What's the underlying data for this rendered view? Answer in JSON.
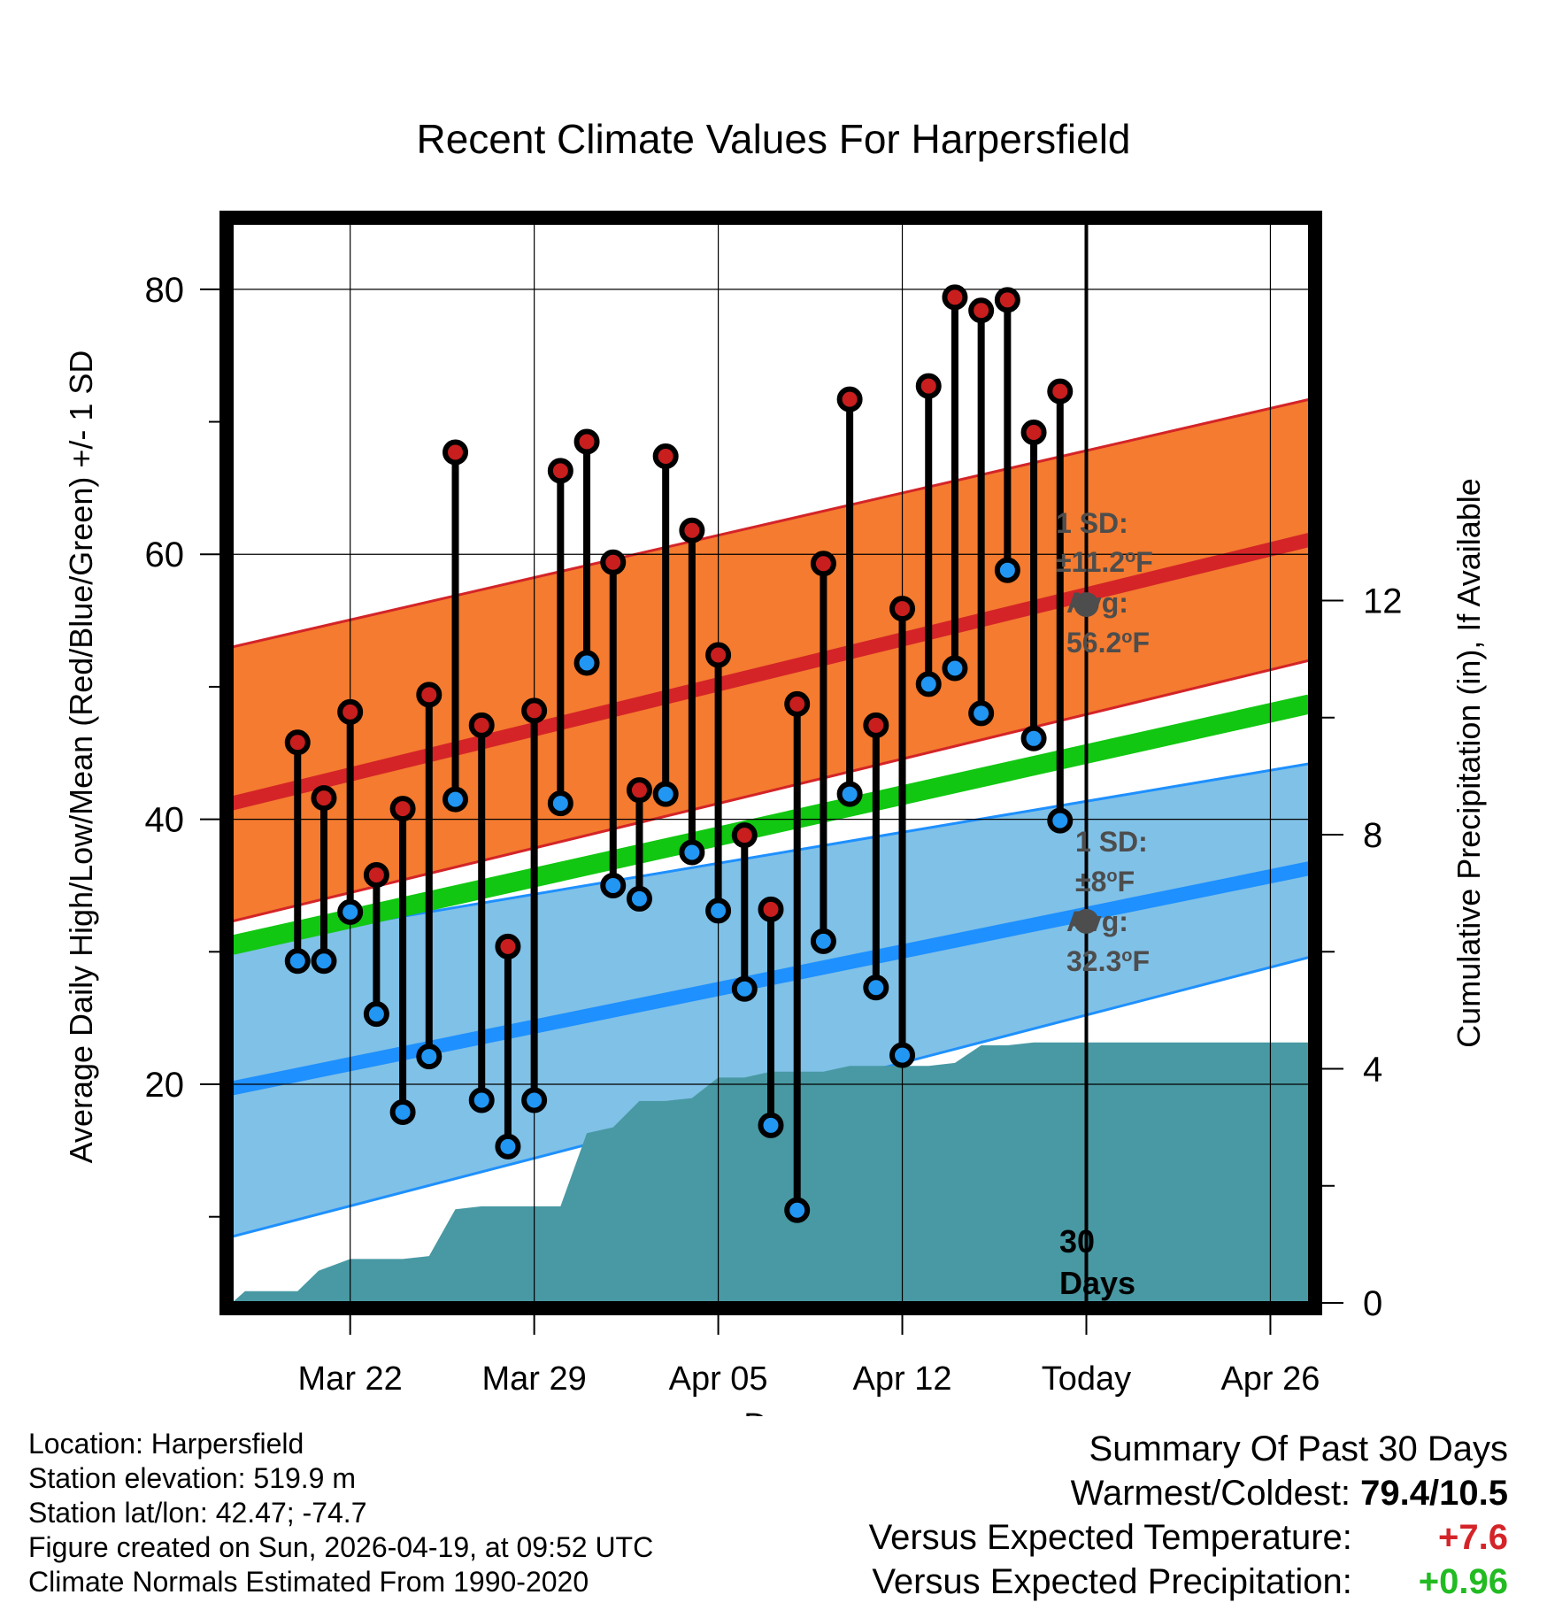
{
  "chart_data": {
    "type": "bar",
    "title": "Recent Climate Values For Harpersfield",
    "xlabel": "Day",
    "ylabel": "Average Daily High/Low/Mean (Red/Blue/Green) +/- 1 SD",
    "y2label": "Cumulative Precipitation (in), If Available",
    "ylim": [
      3.5,
      85
    ],
    "y2lim": [
      0,
      18.45
    ],
    "xlim": [
      -4.5,
      36.5
    ],
    "yticks": [
      "20",
      "40",
      "60",
      "80"
    ],
    "y2ticks": [
      "0",
      "4",
      "8",
      "12"
    ],
    "xticks": [
      {
        "day": 0,
        "label": "Mar 22"
      },
      {
        "day": 7,
        "label": "Mar 29"
      },
      {
        "day": 14,
        "label": "Apr 05"
      },
      {
        "day": 21,
        "label": "Apr 12"
      },
      {
        "day": 28,
        "label": "Today"
      },
      {
        "day": 35,
        "label": "Apr 26"
      }
    ],
    "days": [
      -2,
      -1,
      0,
      1,
      2,
      3,
      4,
      5,
      6,
      7,
      8,
      9,
      10,
      11,
      12,
      13,
      14,
      15,
      16,
      17,
      18,
      19,
      20,
      21,
      22,
      23,
      24,
      25,
      26,
      27
    ],
    "highs": [
      45.8,
      41.6,
      48.1,
      35.8,
      40.8,
      49.4,
      67.7,
      47.1,
      30.4,
      48.2,
      66.3,
      68.5,
      59.4,
      42.2,
      67.4,
      61.8,
      52.4,
      38.8,
      33.2,
      48.7,
      59.3,
      71.7,
      47.1,
      55.9,
      72.7,
      79.4,
      78.4,
      79.2,
      69.2,
      72.3
    ],
    "lows": [
      29.3,
      29.3,
      33.0,
      25.3,
      17.9,
      22.1,
      41.5,
      18.8,
      15.3,
      18.8,
      41.2,
      51.8,
      35.0,
      34.0,
      41.9,
      37.5,
      33.1,
      27.2,
      16.9,
      10.5,
      30.8,
      41.9,
      27.3,
      22.2,
      50.2,
      51.4,
      48.0,
      58.8,
      46.1,
      39.9
    ],
    "normal_high": {
      "days": [
        -4.5,
        36.5
      ],
      "values": [
        41.2,
        61.1
      ],
      "sd_upper": [
        53.0,
        71.7
      ],
      "sd_lower": [
        32.3,
        52.0
      ]
    },
    "normal_low": {
      "days": [
        -4.5,
        36.5
      ],
      "values": [
        19.7,
        36.3
      ],
      "sd_upper": [
        30.5,
        44.2
      ],
      "sd_lower": [
        8.5,
        29.6
      ]
    },
    "normal_mean": {
      "days": [
        -4.5,
        36.5
      ],
      "values": [
        30.5,
        48.7
      ]
    },
    "precip_cumulative": {
      "days": [
        -4.5,
        -4.0,
        -2.0,
        -1.2,
        0.0,
        2.0,
        3.0,
        4.0,
        5.0,
        7.0,
        8.0,
        9.0,
        10.0,
        11.0,
        11.5,
        12.0,
        13.0,
        14.0,
        15.0,
        16.0,
        17.0,
        18.0,
        19.0,
        20.0,
        21.0,
        22.0,
        23.0,
        24.0,
        25.0,
        26.0,
        27.0,
        28.0,
        36.5
      ],
      "values": [
        0.0,
        0.2,
        0.2,
        0.55,
        0.75,
        0.75,
        0.8,
        1.6,
        1.65,
        1.65,
        1.65,
        2.9,
        3.0,
        3.45,
        3.45,
        3.45,
        3.5,
        3.85,
        3.85,
        3.95,
        3.95,
        3.95,
        4.05,
        4.05,
        4.05,
        4.05,
        4.1,
        4.4,
        4.4,
        4.45,
        4.45,
        4.45,
        4.45
      ]
    },
    "today_day": 28,
    "annotations": {
      "high_sd_label": "1 SD:",
      "high_sd_value": "±11.2",
      "high_avg_label": "Avg:",
      "high_avg_value": "56.2",
      "high_avg": 56.2,
      "low_sd_label": "1 SD:",
      "low_sd_value": "±8",
      "low_avg_label": "Avg:",
      "low_avg_value": "32.3",
      "low_avg": 32.3,
      "unit_degree": "o",
      "unit_f": "F",
      "days_count": "30",
      "days_word": "Days"
    },
    "colors": {
      "high_band": "#f47b2f",
      "high_line": "#d42428",
      "low_band": "#80c1e7",
      "low_line": "#1e90ff",
      "mean_line": "#11c711",
      "precip": "#4899a3",
      "high_dot": "#c81e1e",
      "low_dot": "#2196f3",
      "annotation": "#4d4d4d"
    }
  },
  "info": {
    "location": "Location: Harpersfield",
    "elevation": "Station elevation: 519.9 m",
    "latlon": "Station lat/lon: 42.47; -74.7",
    "created": "Figure created on Sun, 2026-04-19, at 09:52 UTC",
    "normals": "Climate Normals Estimated From 1990-2020"
  },
  "summary": {
    "title": "Summary Of Past 30 Days",
    "warmest_label": "Warmest/Coldest:",
    "warmest_value": "79.4/10.5",
    "temp_label": "Versus Expected Temperature:",
    "temp_value": "+7.6",
    "temp_color": "#d42428",
    "precip_label": "Versus Expected Precipitation:",
    "precip_value": "+0.96",
    "precip_color": "#22bb22"
  }
}
